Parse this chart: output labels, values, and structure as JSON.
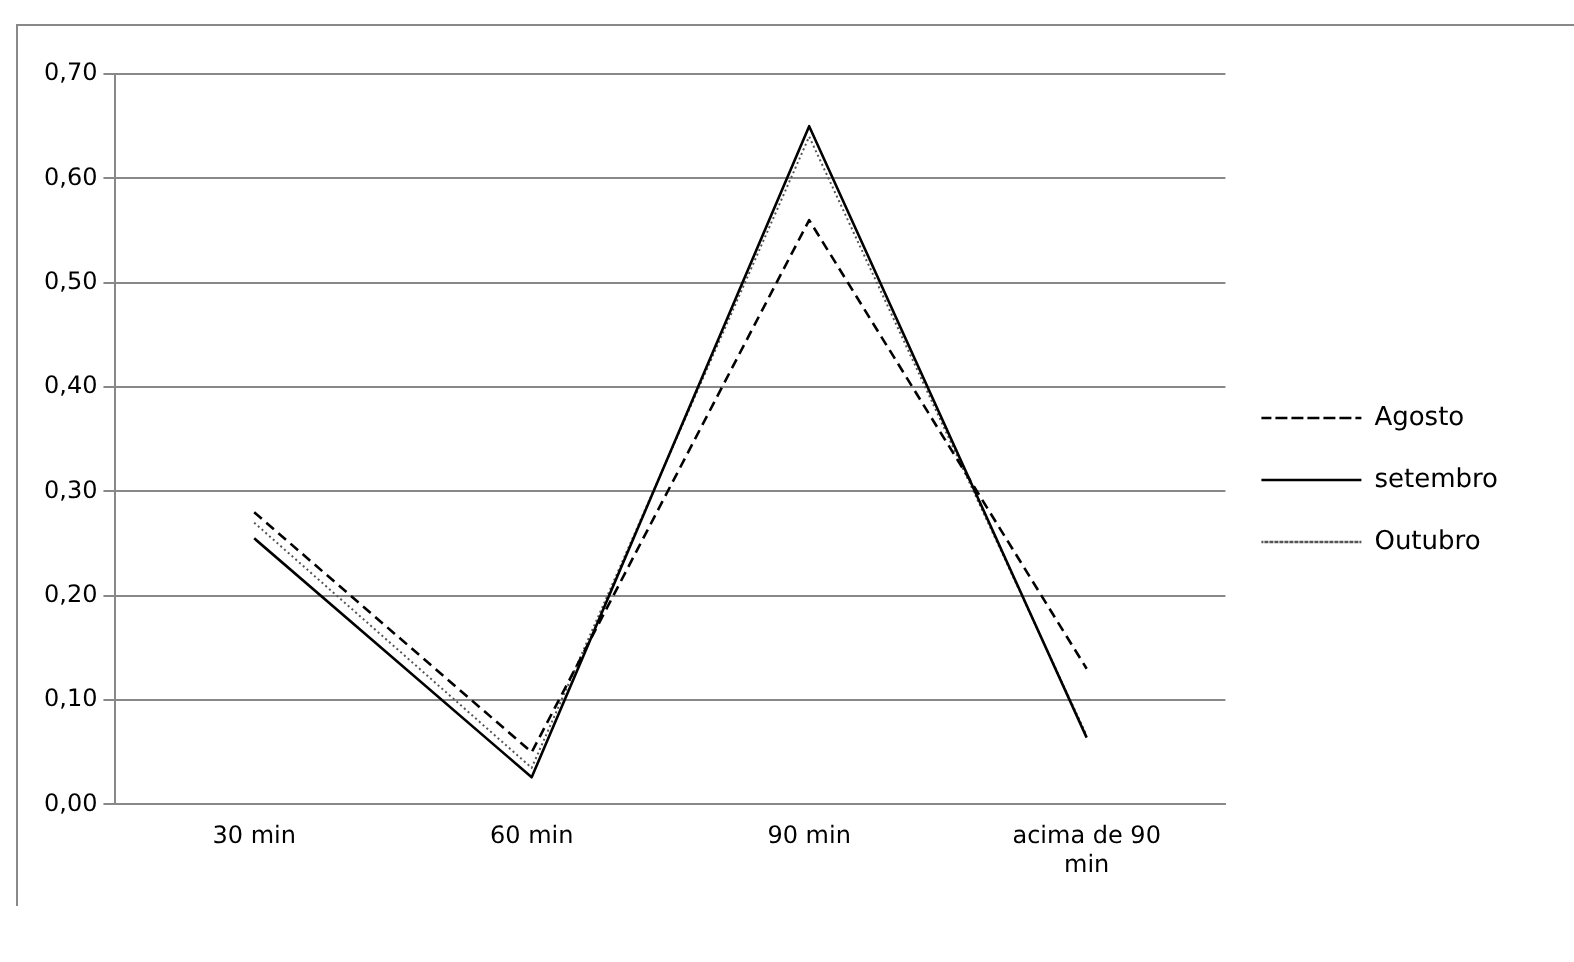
{
  "chart_data": {
    "type": "line",
    "categories": [
      "30 min",
      "60 min",
      "90 min",
      "acima de 90 min"
    ],
    "series": [
      {
        "name": "Agosto",
        "color": "#000000",
        "line_style": "dashed",
        "values": [
          0.28,
          0.05,
          0.56,
          0.13
        ]
      },
      {
        "name": "setembro",
        "color": "#000000",
        "line_style": "solid",
        "values": [
          0.255,
          0.026,
          0.65,
          0.064
        ]
      },
      {
        "name": "Outubro",
        "color": "#555555",
        "line_style": "dotted",
        "values": [
          0.27,
          0.035,
          0.64,
          0.066
        ]
      }
    ],
    "ylim": [
      0,
      0.7
    ],
    "yticks": [
      {
        "value": 0,
        "label": "0,00"
      },
      {
        "value": 0.1,
        "label": "0,10"
      },
      {
        "value": 0.2,
        "label": "0,20"
      },
      {
        "value": 0.3,
        "label": "0,30"
      },
      {
        "value": 0.4,
        "label": "0,40"
      },
      {
        "value": 0.5,
        "label": "0,50"
      },
      {
        "value": 0.6,
        "label": "0,60"
      },
      {
        "value": 0.7,
        "label": "0,70"
      }
    ],
    "grid": "y",
    "legend": "right",
    "marker": "none"
  }
}
